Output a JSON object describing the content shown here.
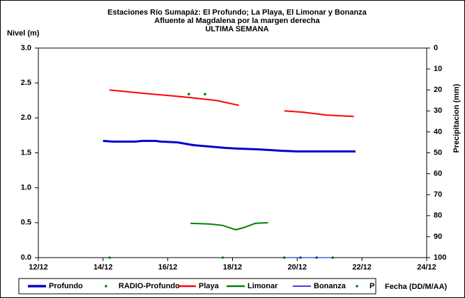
{
  "chart_data": {
    "type": "line",
    "title": [
      "Estaciones Río Sumapáz: El Profundo; La Playa, El Limonar y Bonanza",
      "Afluente al Magdalena por la margen derecha",
      "ULTIMA SEMANA"
    ],
    "ylabel": "Nivel (m)",
    "y2label": "Precipitacion (mm)",
    "xlabel": "Fecha (DD/M/AA)",
    "xlim": [
      12,
      24
    ],
    "xticks": [
      {
        "value": 12,
        "label": "12/12"
      },
      {
        "value": 14,
        "label": "14/12"
      },
      {
        "value": 16,
        "label": "16/12"
      },
      {
        "value": 18,
        "label": "18/12"
      },
      {
        "value": 20,
        "label": "20/12"
      },
      {
        "value": 22,
        "label": "22/12"
      },
      {
        "value": 24,
        "label": "24/12"
      }
    ],
    "ylim": [
      0,
      3
    ],
    "yticks": [
      {
        "value": 0,
        "label": "0.0"
      },
      0.5,
      {
        "value": 1,
        "label": "1.0"
      },
      1.5,
      {
        "value": 2,
        "label": "2.0"
      },
      2.5,
      {
        "value": 3,
        "label": "3.0"
      }
    ],
    "y2lim": [
      0,
      100
    ],
    "y2_inverted": true,
    "y2ticks": [
      0,
      10,
      20,
      30,
      40,
      50,
      60,
      70,
      80,
      90,
      100
    ],
    "grid": false,
    "series": [
      {
        "name": "Profundo",
        "color": "#0000cc",
        "width": 3,
        "style": "line",
        "x": [
          14.0,
          14.3,
          15.0,
          15.2,
          15.6,
          15.8,
          16.3,
          16.8,
          17.3,
          17.8,
          18.2,
          18.8,
          19.5,
          20.0,
          21.0,
          21.8
        ],
        "values": [
          1.67,
          1.66,
          1.66,
          1.67,
          1.67,
          1.66,
          1.65,
          1.61,
          1.59,
          1.57,
          1.56,
          1.55,
          1.53,
          1.52,
          1.52,
          1.52
        ]
      },
      {
        "name": "RADIO-Profundo",
        "color": "#008000",
        "style": "dot",
        "x": [
          14.2,
          17.7,
          19.6,
          20.1,
          20.6,
          21.1
        ],
        "values": [
          0,
          0,
          0,
          0,
          0,
          0
        ]
      },
      {
        "name": "Playa",
        "color": "#ff0000",
        "width": 2,
        "style": "line",
        "x": [
          14.2,
          15.3,
          16.5,
          17.5,
          18.2,
          18.9,
          19.6,
          20.2,
          20.9,
          21.75
        ],
        "values": [
          2.4,
          2.35,
          2.3,
          2.25,
          2.18,
          null,
          2.1,
          2.08,
          2.04,
          2.02
        ]
      },
      {
        "name": "Limonar",
        "color": "#008000",
        "width": 2,
        "style": "line",
        "x": [
          16.7,
          17.3,
          17.7,
          18.1,
          18.35,
          18.7,
          19.1
        ],
        "values": [
          0.49,
          0.48,
          0.46,
          0.4,
          0.43,
          0.49,
          0.5
        ]
      },
      {
        "name": "Bonanza",
        "color": "#0000cc",
        "width": 1,
        "style": "line",
        "x": [
          19.6,
          21.1
        ],
        "values": [
          0,
          0
        ]
      },
      {
        "name": "P",
        "color": "#008000",
        "style": "dot",
        "axis": "y2",
        "x": [
          16.65,
          17.15
        ],
        "values": [
          22,
          22
        ]
      }
    ]
  }
}
